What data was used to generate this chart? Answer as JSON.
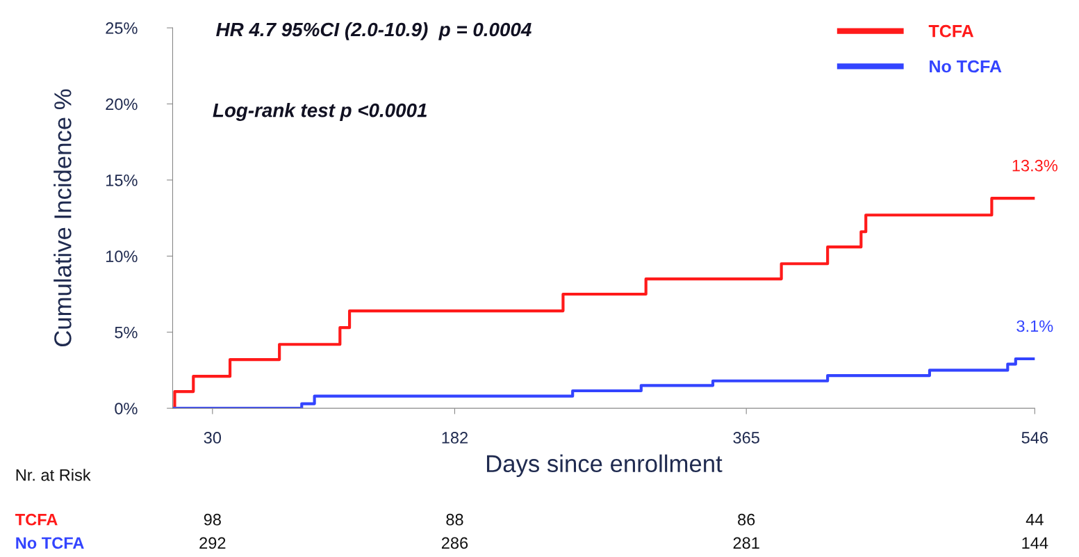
{
  "chart_data": {
    "type": "step",
    "xlabel": "Days since enrollment",
    "ylabel": "Cumulative Incidence %",
    "xlim": [
      5,
      546
    ],
    "xticks": [
      30,
      182,
      365,
      546
    ],
    "ylim": [
      0,
      25
    ],
    "yticks": [
      {
        "value": 0,
        "label": "0%"
      },
      {
        "value": 5,
        "label": "5%"
      },
      {
        "value": 10,
        "label": "10%"
      },
      {
        "value": 15,
        "label": "15%"
      },
      {
        "value": 20,
        "label": "20%"
      },
      {
        "value": 25,
        "label": "25%"
      }
    ],
    "series": [
      {
        "name": "TCFA",
        "color": "#ff1a1a",
        "x": [
          5,
          6.3,
          18,
          41,
          72,
          110,
          116,
          250,
          302,
          387,
          416,
          437,
          440,
          519,
          546
        ],
        "values": [
          0,
          1.1,
          2.1,
          3.2,
          4.2,
          5.3,
          6.4,
          7.5,
          8.5,
          9.5,
          10.6,
          11.6,
          12.7,
          13.8,
          13.8
        ]
      },
      {
        "name": "No TCFA",
        "color": "#3344ff",
        "x": [
          5,
          86,
          94,
          256,
          299,
          344,
          416,
          480,
          529,
          534,
          546
        ],
        "values": [
          0,
          0.3,
          0.8,
          1.15,
          1.5,
          1.8,
          2.15,
          2.5,
          2.9,
          3.25,
          3.25
        ]
      }
    ],
    "annotations": [
      "HR 4.7 95%CI (2.0-10.9)  p = 0.0004",
      "Log-rank test p <0.0001",
      {
        "text": "13.3%",
        "x": 546,
        "y": 13.8
      },
      {
        "text": "3.1%",
        "x": 546,
        "y": 3.25
      },
      "Nr. at Risk",
      "TCFA",
      "98",
      "88",
      "86",
      "44",
      "No TCFA",
      "292",
      "286",
      "281",
      "144"
    ],
    "legend": "top right",
    "grid": false,
    "marker": "none",
    "line_style": "solid"
  }
}
